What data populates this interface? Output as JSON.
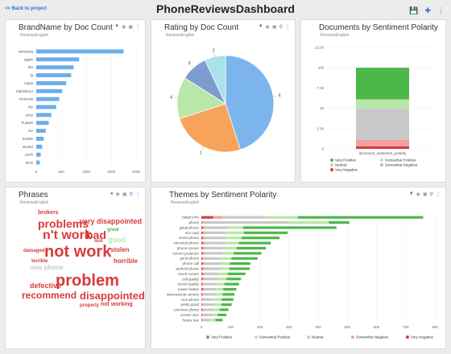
{
  "header": {
    "back_label": "<< Back to project",
    "title": "PhoneReviewsDashboard",
    "icons": [
      "save-icon",
      "add-icon",
      "more-icon"
    ]
  },
  "colors": {
    "very_positive": "#4db848",
    "somewhat_positive": "#b9e7a8",
    "neutral": "#c8c8c8",
    "somewhat_negative": "#f2a0a0",
    "very_negative": "#d93a3a",
    "bar_blue": "#6aaee8",
    "accent": "#2a6fdb"
  },
  "panels": {
    "brand": {
      "title": "BrandName by Doc Count",
      "subtitle": "ReviewsEnglish"
    },
    "rating": {
      "title": "Rating by Doc Count",
      "subtitle": "ReviewsEnglish"
    },
    "documents": {
      "title": "Documents by Sentiment Polarity",
      "subtitle": "ReviewsEnglish"
    },
    "phrases": {
      "title": "Phrases",
      "subtitle": "ReviewsEnglish"
    },
    "themes": {
      "title": "Themes by Sentiment Polarity",
      "subtitle": "ReviewsEnglish"
    }
  },
  "chart_data": [
    {
      "type": "bar",
      "orientation": "horizontal",
      "title": "BrandName by Doc Count",
      "categories": [
        "samsung",
        "apple",
        "blu",
        "lg",
        "nokia",
        "blackberry",
        "motorola",
        "htc",
        "sony",
        "huawei",
        "zte",
        "mobile",
        "alcatel",
        "posh",
        "asus"
      ],
      "values": [
        1750,
        860,
        750,
        700,
        600,
        520,
        460,
        400,
        300,
        250,
        190,
        150,
        120,
        90,
        70
      ],
      "xlim": [
        0,
        2000
      ],
      "xticks": [
        "0",
        "500",
        "1000",
        "1500",
        "2000"
      ]
    },
    {
      "type": "pie",
      "title": "Rating by Doc Count",
      "labels": [
        "5",
        "1",
        "4",
        "3",
        "2"
      ],
      "values": [
        45,
        25,
        14,
        9,
        7
      ],
      "colors": [
        "#7cb5ec",
        "#f7a35c",
        "#b9e7a8",
        "#7d9ccf",
        "#a8e2ec"
      ]
    },
    {
      "type": "bar",
      "stacked": true,
      "title": "Documents by Sentiment Polarity",
      "categories": [
        "document_sentiment_polarity"
      ],
      "series": [
        {
          "name": "Very Negative",
          "values": [
            300
          ]
        },
        {
          "name": "Somewhat Negative",
          "values": [
            800
          ]
        },
        {
          "name": "Neutral",
          "values": [
            3900
          ]
        },
        {
          "name": "Somewhat Positive",
          "values": [
            1100
          ]
        },
        {
          "name": "Very Positive",
          "values": [
            3900
          ]
        }
      ],
      "ylim": [
        0,
        12500
      ],
      "yticks": [
        "0",
        "2.5k",
        "5k",
        "7.5k",
        "10k",
        "12.5k"
      ],
      "legend": "bottom"
    },
    {
      "type": "bar",
      "orientation": "horizontal",
      "stacked": true,
      "title": "Themes by Sentiment Polarity",
      "categories": [
        "battery life",
        "phone",
        "great phone",
        "sim card",
        "smart phone",
        "unlocked phone",
        "phone screen",
        "screen protector",
        "good phone",
        "phone call",
        "android phone",
        "touch screen",
        "call quality",
        "sound quality",
        "power button",
        "international version",
        "nice phone",
        "pretty good",
        "previous phone",
        "screen size",
        "heavy use"
      ],
      "series": [
        {
          "name": "Very Negative",
          "values": [
            40,
            2,
            5,
            4,
            5,
            5,
            4,
            4,
            3,
            5,
            4,
            4,
            4,
            3,
            4,
            3,
            2,
            2,
            3,
            2,
            2
          ]
        },
        {
          "name": "Somewhat Negative",
          "values": [
            30,
            5,
            8,
            7,
            8,
            8,
            7,
            7,
            5,
            8,
            7,
            7,
            6,
            6,
            6,
            5,
            3,
            4,
            5,
            4,
            3
          ]
        },
        {
          "name": "Neutral",
          "values": [
            150,
            290,
            80,
            75,
            70,
            70,
            65,
            60,
            50,
            55,
            55,
            50,
            48,
            45,
            40,
            40,
            35,
            35,
            35,
            30,
            25
          ]
        },
        {
          "name": "Somewhat Positive",
          "values": [
            110,
            140,
            50,
            60,
            55,
            45,
            45,
            40,
            45,
            30,
            30,
            30,
            28,
            25,
            25,
            25,
            30,
            28,
            20,
            20,
            18
          ]
        },
        {
          "name": "Very Positive",
          "values": [
            430,
            70,
            320,
            150,
            130,
            110,
            100,
            95,
            90,
            70,
            70,
            60,
            50,
            50,
            45,
            40,
            40,
            35,
            30,
            30,
            25
          ]
        }
      ],
      "xlim": [
        0,
        800
      ],
      "xticks": [
        "0",
        "100",
        "200",
        "300",
        "400",
        "500",
        "600",
        "700",
        "800"
      ],
      "legend": "bottom"
    }
  ],
  "phrases": [
    {
      "text": "brokers",
      "size": 7,
      "color": "#d93a3a"
    },
    {
      "text": "problems",
      "size": 14,
      "color": "#d93a3a"
    },
    {
      "text": "very disappointed",
      "size": 9,
      "color": "#d93a3a"
    },
    {
      "text": "n't work",
      "size": 16,
      "color": "#d93a3a"
    },
    {
      "text": "bad",
      "size": 14,
      "color": "#d93a3a"
    },
    {
      "text": "great",
      "size": 6,
      "color": "#4db848"
    },
    {
      "text": "good",
      "size": 9,
      "color": "#b9e7a8"
    },
    {
      "text": "lost",
      "size": 6,
      "color": "#d93a3a"
    },
    {
      "text": "damaged",
      "size": 6,
      "color": "#d93a3a"
    },
    {
      "text": "not work",
      "size": 20,
      "color": "#d93a3a"
    },
    {
      "text": "stolen",
      "size": 8,
      "color": "#d93a3a"
    },
    {
      "text": "horrible",
      "size": 8,
      "color": "#d93a3a"
    },
    {
      "text": "terrible",
      "size": 6,
      "color": "#d93a3a"
    },
    {
      "text": "new phone",
      "size": 8,
      "color": "#c8c8c8"
    },
    {
      "text": "problem",
      "size": 20,
      "color": "#d93a3a"
    },
    {
      "text": "defective",
      "size": 9,
      "color": "#d93a3a"
    },
    {
      "text": "recommend",
      "size": 12,
      "color": "#d93a3a"
    },
    {
      "text": "disappointed",
      "size": 13,
      "color": "#d93a3a"
    },
    {
      "text": "properly",
      "size": 6,
      "color": "#d93a3a"
    },
    {
      "text": "not working",
      "size": 7,
      "color": "#d93a3a"
    }
  ]
}
